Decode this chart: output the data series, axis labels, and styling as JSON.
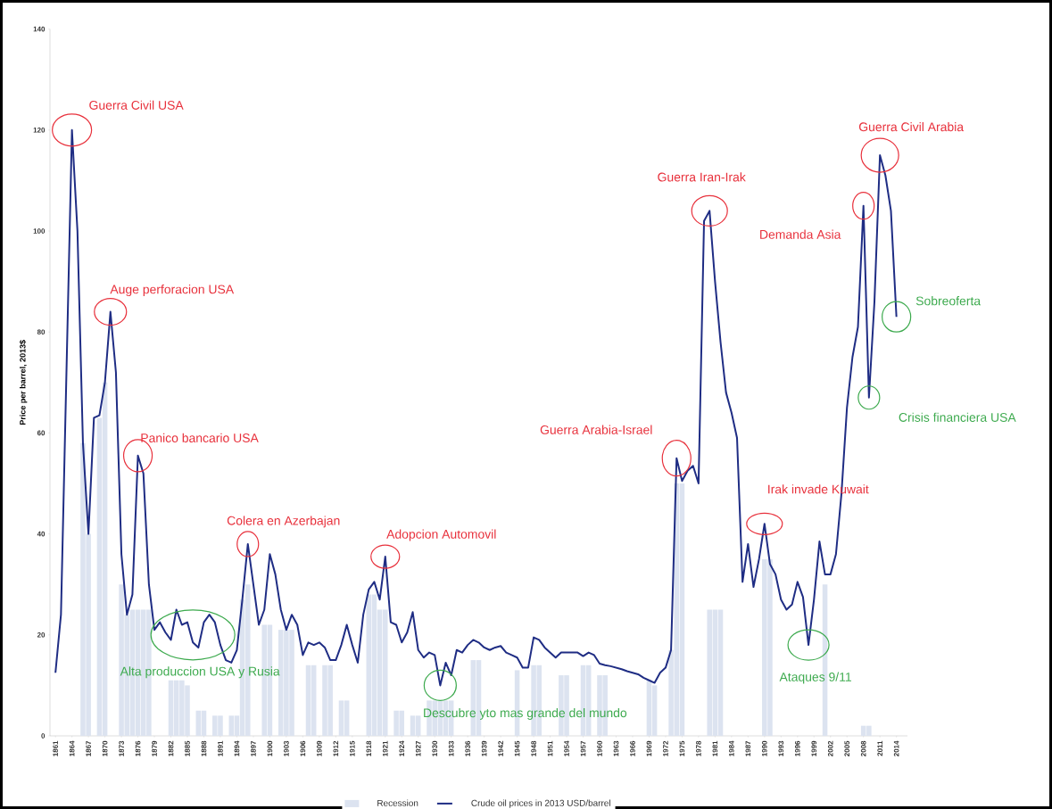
{
  "chart_data": {
    "type": "line",
    "ylabel": "Price per barrel, 2013$",
    "xlim": [
      1860,
      2016
    ],
    "ylim": [
      0,
      140
    ],
    "yticks": [
      0,
      20,
      40,
      60,
      80,
      100,
      120,
      140
    ],
    "xticks": [
      1861,
      1864,
      1867,
      1870,
      1873,
      1876,
      1879,
      1882,
      1885,
      1888,
      1891,
      1894,
      1897,
      1900,
      1903,
      1906,
      1909,
      1912,
      1915,
      1918,
      1921,
      1924,
      1927,
      1930,
      1933,
      1936,
      1939,
      1942,
      1945,
      1948,
      1951,
      1954,
      1957,
      1960,
      1963,
      1966,
      1969,
      1972,
      1975,
      1978,
      1981,
      1984,
      1987,
      1990,
      1993,
      1996,
      1999,
      2002,
      2005,
      2008,
      2011,
      2014
    ],
    "legend": "bottom",
    "series": [
      {
        "name": "Recession",
        "type": "bar",
        "color": "#dce3f0",
        "x": [
          1866,
          1867,
          1869,
          1870,
          1873,
          1874,
          1875,
          1876,
          1877,
          1878,
          1882,
          1883,
          1884,
          1885,
          1887,
          1888,
          1890,
          1891,
          1893,
          1894,
          1895,
          1896,
          1899,
          1900,
          1902,
          1903,
          1904,
          1907,
          1908,
          1910,
          1911,
          1913,
          1914,
          1918,
          1919,
          1920,
          1921,
          1923,
          1924,
          1926,
          1927,
          1929,
          1930,
          1931,
          1932,
          1933,
          1937,
          1938,
          1945,
          1948,
          1949,
          1953,
          1954,
          1957,
          1958,
          1960,
          1961,
          1969,
          1970,
          1973,
          1974,
          1975,
          1980,
          1981,
          1982,
          1990,
          1991,
          2001,
          2008,
          2009
        ],
        "values": [
          58,
          40,
          63,
          70,
          30,
          24,
          25,
          25,
          25,
          25,
          11,
          11,
          11,
          10,
          5,
          5,
          4,
          4,
          4,
          4,
          27,
          30,
          22,
          22,
          21,
          21,
          21,
          14,
          14,
          14,
          14,
          7,
          7,
          28,
          28,
          25,
          25,
          5,
          5,
          4,
          4,
          7,
          7,
          7,
          7,
          7,
          15,
          15,
          13,
          14,
          14,
          12,
          12,
          14,
          14,
          12,
          12,
          11,
          10,
          17,
          50,
          50,
          25,
          25,
          25,
          35,
          35,
          30,
          2,
          2
        ]
      },
      {
        "name": "Crude oil prices in 2013 USD/barrel",
        "color": "#1f2d84",
        "x": [
          1861,
          1862,
          1864,
          1865,
          1866,
          1867,
          1868,
          1869,
          1870,
          1871,
          1872,
          1873,
          1874,
          1875,
          1876,
          1877,
          1878,
          1879,
          1880,
          1881,
          1882,
          1883,
          1884,
          1885,
          1886,
          1887,
          1888,
          1889,
          1890,
          1891,
          1892,
          1893,
          1894,
          1895,
          1896,
          1897,
          1898,
          1899,
          1900,
          1901,
          1902,
          1903,
          1904,
          1905,
          1906,
          1907,
          1908,
          1909,
          1910,
          1911,
          1912,
          1913,
          1914,
          1915,
          1916,
          1917,
          1918,
          1919,
          1920,
          1921,
          1922,
          1923,
          1924,
          1925,
          1926,
          1927,
          1928,
          1929,
          1930,
          1931,
          1932,
          1933,
          1934,
          1935,
          1936,
          1937,
          1938,
          1939,
          1940,
          1941,
          1942,
          1943,
          1944,
          1945,
          1946,
          1947,
          1948,
          1949,
          1950,
          1951,
          1952,
          1953,
          1954,
          1955,
          1956,
          1957,
          1958,
          1959,
          1960,
          1961,
          1962,
          1963,
          1964,
          1965,
          1966,
          1967,
          1968,
          1969,
          1970,
          1971,
          1972,
          1973,
          1974,
          1975,
          1976,
          1977,
          1978,
          1979,
          1980,
          1981,
          1982,
          1983,
          1984,
          1985,
          1986,
          1987,
          1988,
          1989,
          1990,
          1991,
          1992,
          1993,
          1994,
          1995,
          1996,
          1997,
          1998,
          1999,
          2000,
          2001,
          2002,
          2003,
          2004,
          2005,
          2006,
          2007,
          2008,
          2009,
          2010,
          2011,
          2012,
          2013,
          2014
        ],
        "values": [
          12.5,
          24,
          120,
          100,
          58,
          40,
          63,
          63.5,
          70,
          84,
          72,
          36,
          24,
          28,
          55.5,
          52,
          30,
          21,
          22.5,
          20.5,
          19,
          25,
          22,
          22.5,
          18.5,
          17.5,
          22.5,
          24,
          22.5,
          18,
          15,
          14.5,
          17,
          27,
          38,
          30,
          22,
          25,
          36,
          32,
          25,
          21,
          24,
          22,
          16,
          18.5,
          18,
          18.5,
          17.5,
          15,
          15,
          18,
          22,
          18,
          14.5,
          24,
          29,
          30.5,
          27,
          35.5,
          22.5,
          22,
          18.5,
          20.5,
          24.5,
          17,
          15.5,
          16.5,
          16,
          10,
          14.5,
          12,
          17,
          16.5,
          18,
          19,
          18.5,
          17.5,
          17,
          17.5,
          17.8,
          16.5,
          16,
          15.5,
          13.5,
          13.5,
          19.5,
          19,
          17.5,
          16.5,
          15.5,
          16.5,
          16.5,
          16.5,
          16.5,
          15.8,
          16.5,
          16,
          14.3,
          14,
          13.8,
          13.5,
          13.2,
          12.8,
          12.5,
          12.2,
          11.5,
          11,
          10.5,
          12.5,
          13.5,
          17,
          55,
          50.5,
          52.5,
          53.5,
          50,
          102,
          104,
          90,
          78,
          68,
          64,
          59,
          30.5,
          38,
          29.5,
          35,
          42,
          34,
          32,
          27,
          25,
          26,
          30.5,
          27.5,
          18,
          27,
          38.5,
          32,
          32,
          36,
          48,
          65,
          75,
          81,
          105,
          67,
          86,
          115,
          111,
          104,
          83
        ]
      }
    ],
    "annotations": [
      {
        "text": "Guerra Civil USA",
        "x": 1864,
        "y": 120
      },
      {
        "text": "Auge perforacion USA",
        "x": 1871,
        "y": 84
      },
      {
        "text": "Panico bancario USA",
        "x": 1876,
        "y": 55.5
      },
      {
        "text": "Colera en Azerbajan",
        "x": 1896,
        "y": 38
      },
      {
        "text": "Adopcion Automovil",
        "x": 1921,
        "y": 35.5
      },
      {
        "text": "Guerra Arabia-Israel",
        "x": 1974,
        "y": 55
      },
      {
        "text": "Guerra Iran-Irak",
        "x": 1980,
        "y": 104
      },
      {
        "text": "Irak invade Kuwait",
        "x": 1990,
        "y": 42
      },
      {
        "text": "Demanda Asia",
        "x": 2008,
        "y": 105
      },
      {
        "text": "Guerra Civil Arabia",
        "x": 2011,
        "y": 115
      },
      {
        "text": "Sobreoferta",
        "x": 2014,
        "y": 83
      },
      {
        "text": "Crisis financiera USA",
        "x": 2009,
        "y": 67
      },
      {
        "text": "Ataques 9/11",
        "x": 1998,
        "y": 18
      },
      {
        "text": "Alta produccion USA y Rusia",
        "x": 1886,
        "y": 20
      },
      {
        "text": "Descubre yto mas grande del mundo",
        "x": 1931,
        "y": 10
      }
    ]
  }
}
